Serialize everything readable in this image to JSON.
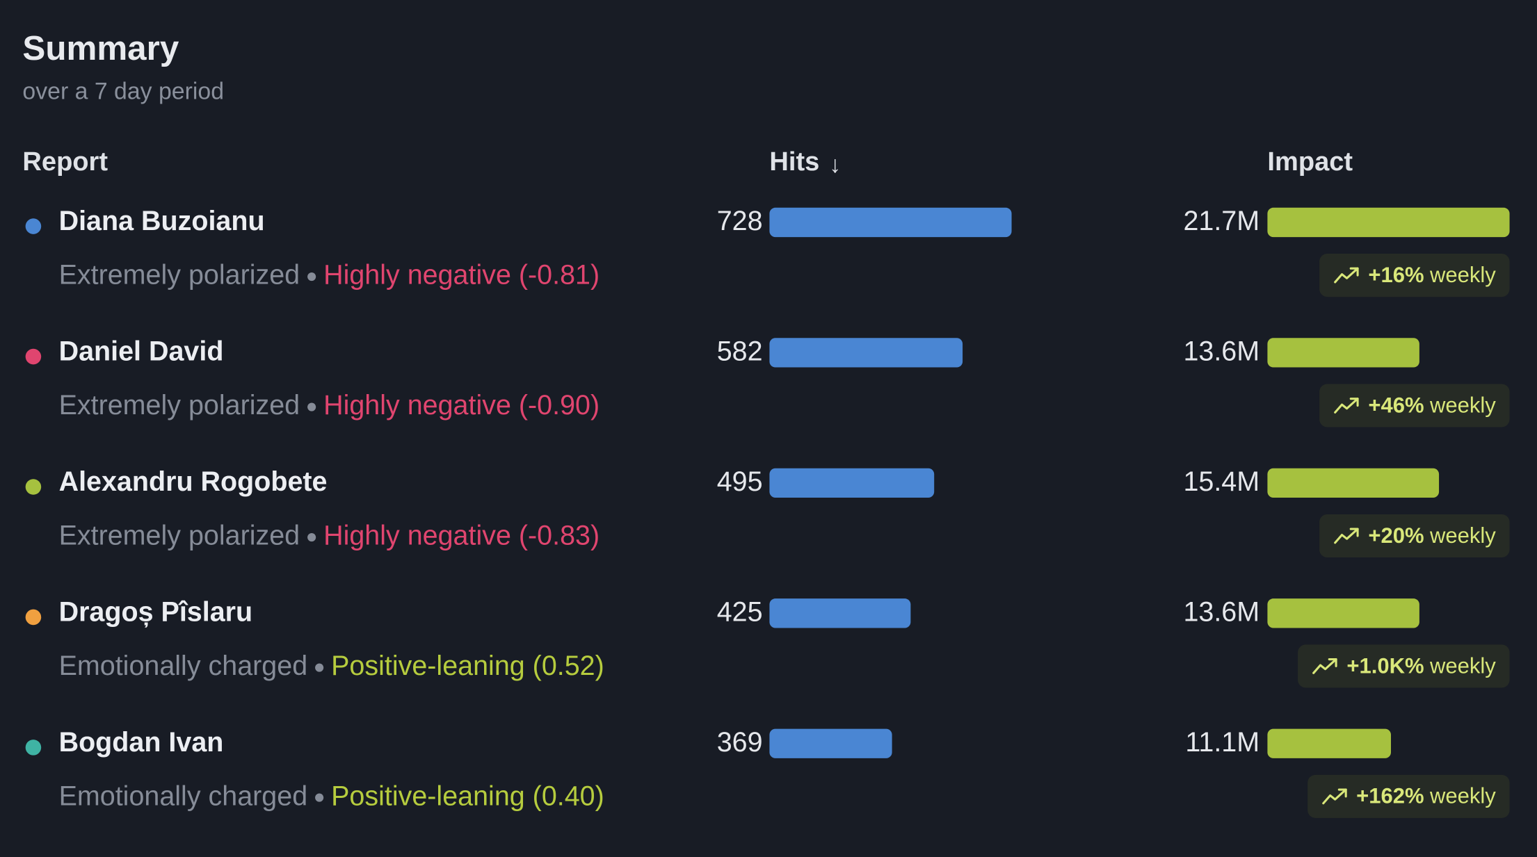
{
  "summary": {
    "title": "Summary",
    "subtitle": "over a 7 day period"
  },
  "columns": {
    "report": "Report",
    "hits": "Hits",
    "hits_sort": "↓",
    "impact": "Impact"
  },
  "colors": {
    "hits_bar": "#4a86d3",
    "impact_bar": "#a6c13f",
    "negative": "#e0456f",
    "positive": "#b6cc3e",
    "trend_text": "#d9e77a"
  },
  "hits_max": 728,
  "impact_max": 21.7,
  "rows": [
    {
      "name": "Diana Buzoianu",
      "dot_color": "#4a86d3",
      "polarization": "Extremely polarized",
      "sentiment": "Highly negative (-0.81)",
      "sentiment_type": "negative",
      "hits": "728",
      "hits_value": 728,
      "impact": "21.7M",
      "impact_value": 21.7,
      "trend_pct": "+16%",
      "trend_label": "weekly"
    },
    {
      "name": "Daniel David",
      "dot_color": "#e0456f",
      "polarization": "Extremely polarized",
      "sentiment": "Highly negative (-0.90)",
      "sentiment_type": "negative",
      "hits": "582",
      "hits_value": 582,
      "impact": "13.6M",
      "impact_value": 13.6,
      "trend_pct": "+46%",
      "trend_label": "weekly"
    },
    {
      "name": "Alexandru Rogobete",
      "dot_color": "#a6c13f",
      "polarization": "Extremely polarized",
      "sentiment": "Highly negative (-0.83)",
      "sentiment_type": "negative",
      "hits": "495",
      "hits_value": 495,
      "impact": "15.4M",
      "impact_value": 15.4,
      "trend_pct": "+20%",
      "trend_label": "weekly"
    },
    {
      "name": "Dragoș Pîslaru",
      "dot_color": "#f0a040",
      "polarization": "Emotionally charged",
      "sentiment": "Positive-leaning (0.52)",
      "sentiment_type": "positive",
      "hits": "425",
      "hits_value": 425,
      "impact": "13.6M",
      "impact_value": 13.6,
      "trend_pct": "+1.0K%",
      "trend_label": "weekly"
    },
    {
      "name": "Bogdan Ivan",
      "dot_color": "#3fb3a4",
      "polarization": "Emotionally charged",
      "sentiment": "Positive-leaning (0.40)",
      "sentiment_type": "positive",
      "hits": "369",
      "hits_value": 369,
      "impact": "11.1M",
      "impact_value": 11.1,
      "trend_pct": "+162%",
      "trend_label": "weekly"
    }
  ]
}
